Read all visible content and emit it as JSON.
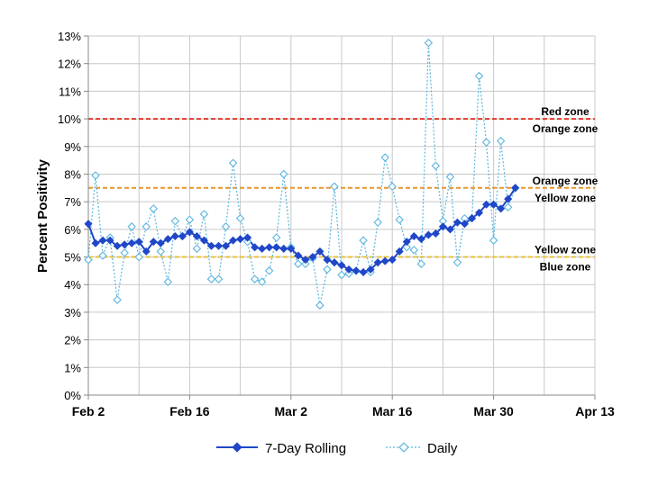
{
  "chart_data": {
    "type": "line",
    "title": "",
    "xlabel": "",
    "ylabel": "Percent Positivity",
    "x_tick_labels": [
      "Feb 2",
      "Feb 16",
      "Mar 2",
      "Mar 16",
      "Mar 30",
      "Apr 13"
    ],
    "y_tick_labels": [
      "0%",
      "1%",
      "2%",
      "3%",
      "4%",
      "5%",
      "6%",
      "7%",
      "8%",
      "9%",
      "10%",
      "11%",
      "12%",
      "13%"
    ],
    "xlim": [
      "Feb 2",
      "Apr 13"
    ],
    "ylim": [
      0,
      13
    ],
    "grid": true,
    "legend_position": "bottom",
    "x_dates": [
      "Feb 2",
      "Feb 3",
      "Feb 4",
      "Feb 5",
      "Feb 6",
      "Feb 7",
      "Feb 8",
      "Feb 9",
      "Feb 10",
      "Feb 11",
      "Feb 12",
      "Feb 13",
      "Feb 14",
      "Feb 15",
      "Feb 16",
      "Feb 17",
      "Feb 18",
      "Feb 19",
      "Feb 20",
      "Feb 21",
      "Feb 22",
      "Feb 23",
      "Feb 24",
      "Feb 25",
      "Feb 26",
      "Feb 27",
      "Feb 28",
      "Mar 1",
      "Mar 2",
      "Mar 3",
      "Mar 4",
      "Mar 5",
      "Mar 6",
      "Mar 7",
      "Mar 8",
      "Mar 9",
      "Mar 10",
      "Mar 11",
      "Mar 12",
      "Mar 13",
      "Mar 14",
      "Mar 15",
      "Mar 16",
      "Mar 17",
      "Mar 18",
      "Mar 19",
      "Mar 20",
      "Mar 21",
      "Mar 22",
      "Mar 23",
      "Mar 24",
      "Mar 25",
      "Mar 26",
      "Mar 27",
      "Mar 28",
      "Mar 29",
      "Mar 30",
      "Mar 31",
      "Apr 1",
      "Apr 2"
    ],
    "series": [
      {
        "name": "7-Day Rolling",
        "color": "#1f47c8",
        "values": [
          6.2,
          5.5,
          5.6,
          5.6,
          5.4,
          5.45,
          5.5,
          5.55,
          5.2,
          5.55,
          5.5,
          5.65,
          5.75,
          5.75,
          5.9,
          5.75,
          5.6,
          5.4,
          5.4,
          5.4,
          5.6,
          5.65,
          5.7,
          5.35,
          5.3,
          5.35,
          5.35,
          5.3,
          5.3,
          5.05,
          4.9,
          5.0,
          5.2,
          4.9,
          4.8,
          4.7,
          4.55,
          4.5,
          4.45,
          4.55,
          4.8,
          4.85,
          4.9,
          5.2,
          5.55,
          5.75,
          5.65,
          5.8,
          5.85,
          6.1,
          6.0,
          6.25,
          6.2,
          6.4,
          6.6,
          6.9,
          6.9,
          6.75,
          7.1,
          7.5
        ]
      },
      {
        "name": "Daily",
        "color": "#5bb5e0",
        "values": [
          4.9,
          7.95,
          5.05,
          5.7,
          3.45,
          5.15,
          6.1,
          5.0,
          6.1,
          6.75,
          5.2,
          4.1,
          6.3,
          5.75,
          6.35,
          5.3,
          6.55,
          4.2,
          4.2,
          6.1,
          8.4,
          6.4,
          5.55,
          4.2,
          4.1,
          4.5,
          5.7,
          8.0,
          5.35,
          4.75,
          4.75,
          4.95,
          3.25,
          4.55,
          7.55,
          4.35,
          4.4,
          4.5,
          5.6,
          4.45,
          6.25,
          8.6,
          7.55,
          6.35,
          5.35,
          5.25,
          4.75,
          12.75,
          8.3,
          6.3,
          7.9,
          4.8,
          6.4,
          6.4,
          11.55,
          9.15,
          5.6,
          9.2,
          6.8,
          7.5
        ]
      }
    ],
    "thresholds": [
      {
        "value": 10.0,
        "color": "#e03a2a",
        "label_above": "Red zone",
        "label_below": "Orange zone"
      },
      {
        "value": 7.5,
        "color": "#e8952a",
        "label_above": "Orange zone",
        "label_below": "Yellow zone"
      },
      {
        "value": 5.0,
        "color": "#e8c23a",
        "label_above": "Yellow zone",
        "label_below": "Blue zone"
      }
    ]
  }
}
